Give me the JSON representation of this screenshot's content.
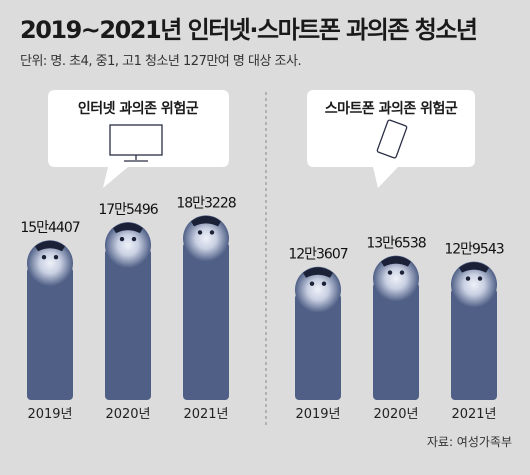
{
  "title": "2019~2021년 인터넷·스마트폰 과의존 청소년",
  "subtitle": "단위: 명. 초4, 중1, 고1 청소년 127만여 명 대상 조사.",
  "source": "자료: 여성가족부",
  "colors": {
    "background": "#dcdcdc",
    "figure": "#4f5f86",
    "face_highlight": "#eef1f8",
    "callout_bg": "#ffffff"
  },
  "icons": {
    "internet": "monitor-icon",
    "smartphone": "smartphone-icon"
  },
  "chart_data": [
    {
      "type": "bar",
      "title": "인터넷 과의존 위험군",
      "categories": [
        "2019년",
        "2020년",
        "2021년"
      ],
      "values": [
        154407,
        175496,
        183228
      ],
      "value_labels": [
        "15만4407",
        "17만5496",
        "18만3228"
      ]
    },
    {
      "type": "bar",
      "title": "스마트폰 과의존 위험군",
      "categories": [
        "2019년",
        "2020년",
        "2021년"
      ],
      "values": [
        123607,
        136538,
        129543
      ],
      "value_labels": [
        "12만3607",
        "13만6538",
        "12만9543"
      ]
    }
  ]
}
